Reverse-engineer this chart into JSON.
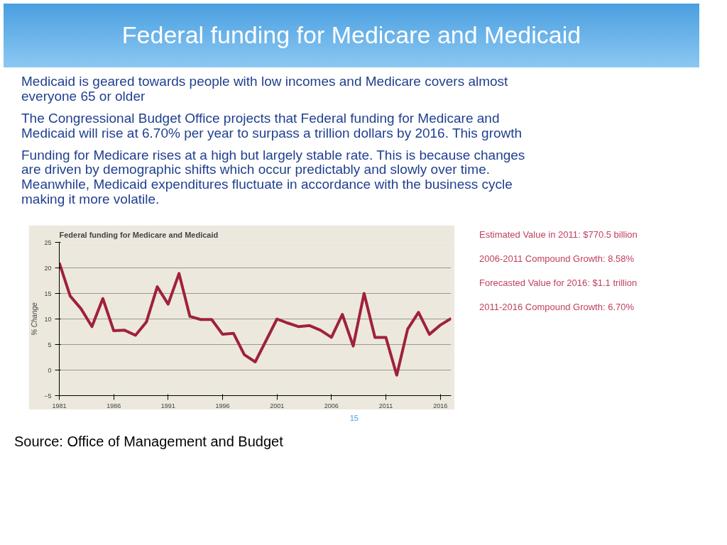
{
  "chart_data": {
    "type": "line",
    "title": "Federal funding for Medicare and Medicaid",
    "ylabel": "% Change",
    "x": [
      1981,
      1982,
      1983,
      1984,
      1985,
      1986,
      1987,
      1988,
      1989,
      1990,
      1991,
      1992,
      1993,
      1994,
      1995,
      1996,
      1997,
      1998,
      1999,
      2000,
      2001,
      2002,
      2003,
      2004,
      2005,
      2006,
      2007,
      2008,
      2009,
      2010,
      2011,
      2012,
      2013,
      2014,
      2015,
      2016,
      2017
    ],
    "series": [
      {
        "color": "#a0213a",
        "values": [
          21,
          14.5,
          12,
          8.5,
          14,
          7.7,
          7.8,
          6.8,
          9.4,
          16.3,
          12.9,
          18.9,
          10.5,
          9.9,
          9.9,
          7,
          7.2,
          3,
          1.6,
          5.8,
          10,
          9.2,
          8.5,
          8.7,
          7.8,
          6.4,
          10.9,
          4.7,
          15,
          6.4,
          6.4,
          -1,
          8,
          11.3,
          7,
          8.8,
          10.1
        ]
      }
    ],
    "xlim": [
      1981,
      2017
    ],
    "xticks": [
      1981,
      1986,
      1991,
      1996,
      2001,
      2006,
      2011,
      2016
    ],
    "ylim": [
      -5,
      25
    ],
    "yticks": [
      -5,
      0,
      5,
      10,
      15,
      20,
      25
    ],
    "grid": "y",
    "marker": "none",
    "line_style": "solid",
    "annotations": [
      "Federal funding for Medicare and Medicaid",
      "Medicaid is geared towards people with low incomes and Medicare covers almost everyone 65 or older",
      "The Congressional Budget Office projects that Federal funding for Medicare and Medicaid will rise at 6.70% per year to surpass a trillion dollars by 2016. This growth",
      "Funding for Medicare rises at a high but largely stable rate. This is because changes are driven by demographic shifts which occur predictably and slowly over time. Meanwhile, Medicaid expenditures fluctuate in accordance with the business cycle making it more volatile.",
      "Estimated Value in 2011: $770.5 billion",
      "2006-2011 Compound Growth: 8.58%",
      "Forecasted Value for 2016: $1.1 trillion",
      "2011-2016 Compound Growth: 6.70%",
      "15",
      "Source: Office of Management and Budget"
    ]
  }
}
